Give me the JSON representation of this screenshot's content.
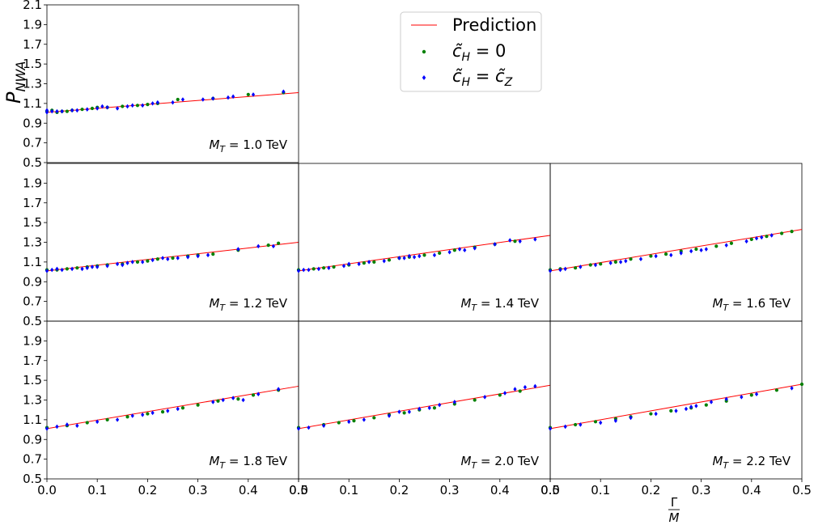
{
  "chart_data": {
    "type": "scatter",
    "ylabel": "P_NWA",
    "xlabel": "Γ/M",
    "legend": {
      "placement": "top-center",
      "entries": [
        {
          "label": "Prediction",
          "kind": "line",
          "color": "#ff0000"
        },
        {
          "label": "c̃_H = 0",
          "kind": "marker",
          "color": "#008000"
        },
        {
          "label": "c̃_H = c̃_Z",
          "kind": "marker",
          "color": "#0000ff"
        }
      ]
    },
    "xlim": [
      0.0,
      0.5
    ],
    "xticks": [
      0.0,
      0.1,
      0.2,
      0.3,
      0.4,
      0.5
    ],
    "xtick_labels": [
      "0.0",
      "0.1",
      "0.2",
      "0.3",
      "0.4",
      "0.5"
    ],
    "ylim_top_row": [
      0.5,
      2.1
    ],
    "ylim": [
      0.5,
      2.1
    ],
    "yticks_top_row": [
      "0.5",
      "0.7",
      "0.9",
      "1.1",
      "1.3",
      "1.5",
      "1.7",
      "1.9",
      "2.1"
    ],
    "yticks": [
      "0.5",
      "0.7",
      "0.9",
      "1.1",
      "1.3",
      "1.5",
      "1.7",
      "1.9"
    ],
    "panels": [
      {
        "label_mass": "1.0",
        "unit": "TeV",
        "row": 0,
        "col": 0,
        "prediction": [
          [
            0.0,
            1.01
          ],
          [
            0.5,
            1.21
          ]
        ],
        "green": [
          [
            0.0,
            1.02
          ],
          [
            0.01,
            1.03
          ],
          [
            0.02,
            1.01
          ],
          [
            0.03,
            1.02
          ],
          [
            0.04,
            1.02
          ],
          [
            0.05,
            1.03
          ],
          [
            0.07,
            1.04
          ],
          [
            0.09,
            1.05
          ],
          [
            0.1,
            1.06
          ],
          [
            0.12,
            1.06
          ],
          [
            0.15,
            1.07
          ],
          [
            0.18,
            1.08
          ],
          [
            0.2,
            1.09
          ],
          [
            0.22,
            1.1
          ],
          [
            0.26,
            1.14
          ],
          [
            0.33,
            1.15
          ],
          [
            0.4,
            1.19
          ],
          [
            0.47,
            1.21
          ]
        ],
        "blue": [
          [
            0.0,
            1.01
          ],
          [
            0.0,
            1.03
          ],
          [
            0.01,
            1.02
          ],
          [
            0.02,
            1.02
          ],
          [
            0.03,
            1.02
          ],
          [
            0.05,
            1.03
          ],
          [
            0.06,
            1.03
          ],
          [
            0.08,
            1.04
          ],
          [
            0.1,
            1.05
          ],
          [
            0.11,
            1.07
          ],
          [
            0.12,
            1.06
          ],
          [
            0.14,
            1.05
          ],
          [
            0.16,
            1.07
          ],
          [
            0.17,
            1.08
          ],
          [
            0.19,
            1.08
          ],
          [
            0.21,
            1.1
          ],
          [
            0.22,
            1.11
          ],
          [
            0.25,
            1.11
          ],
          [
            0.27,
            1.14
          ],
          [
            0.31,
            1.14
          ],
          [
            0.33,
            1.15
          ],
          [
            0.36,
            1.16
          ],
          [
            0.37,
            1.17
          ],
          [
            0.41,
            1.19
          ],
          [
            0.47,
            1.22
          ]
        ]
      },
      {
        "label_mass": "1.2",
        "unit": "TeV",
        "row": 1,
        "col": 0,
        "prediction": [
          [
            0.0,
            1.01
          ],
          [
            0.5,
            1.3
          ]
        ],
        "green": [
          [
            0.0,
            1.02
          ],
          [
            0.02,
            1.02
          ],
          [
            0.04,
            1.03
          ],
          [
            0.06,
            1.04
          ],
          [
            0.08,
            1.05
          ],
          [
            0.1,
            1.06
          ],
          [
            0.12,
            1.07
          ],
          [
            0.15,
            1.08
          ],
          [
            0.18,
            1.1
          ],
          [
            0.2,
            1.11
          ],
          [
            0.22,
            1.13
          ],
          [
            0.25,
            1.14
          ],
          [
            0.28,
            1.16
          ],
          [
            0.3,
            1.17
          ],
          [
            0.33,
            1.18
          ],
          [
            0.38,
            1.22
          ],
          [
            0.44,
            1.27
          ],
          [
            0.46,
            1.29
          ]
        ],
        "blue": [
          [
            0.0,
            1.01
          ],
          [
            0.01,
            1.02
          ],
          [
            0.02,
            1.03
          ],
          [
            0.03,
            1.02
          ],
          [
            0.05,
            1.03
          ],
          [
            0.07,
            1.03
          ],
          [
            0.08,
            1.04
          ],
          [
            0.09,
            1.05
          ],
          [
            0.1,
            1.05
          ],
          [
            0.12,
            1.06
          ],
          [
            0.14,
            1.08
          ],
          [
            0.15,
            1.07
          ],
          [
            0.16,
            1.09
          ],
          [
            0.17,
            1.1
          ],
          [
            0.19,
            1.1
          ],
          [
            0.21,
            1.12
          ],
          [
            0.23,
            1.14
          ],
          [
            0.24,
            1.13
          ],
          [
            0.26,
            1.14
          ],
          [
            0.28,
            1.15
          ],
          [
            0.3,
            1.16
          ],
          [
            0.32,
            1.17
          ],
          [
            0.38,
            1.23
          ],
          [
            0.42,
            1.26
          ],
          [
            0.45,
            1.26
          ]
        ]
      },
      {
        "label_mass": "1.4",
        "unit": "TeV",
        "row": 1,
        "col": 1,
        "prediction": [
          [
            0.0,
            1.01
          ],
          [
            0.5,
            1.37
          ]
        ],
        "green": [
          [
            0.0,
            1.02
          ],
          [
            0.03,
            1.03
          ],
          [
            0.05,
            1.04
          ],
          [
            0.07,
            1.05
          ],
          [
            0.1,
            1.07
          ],
          [
            0.13,
            1.09
          ],
          [
            0.15,
            1.1
          ],
          [
            0.18,
            1.12
          ],
          [
            0.2,
            1.14
          ],
          [
            0.22,
            1.15
          ],
          [
            0.25,
            1.17
          ],
          [
            0.28,
            1.19
          ],
          [
            0.31,
            1.22
          ],
          [
            0.35,
            1.25
          ],
          [
            0.39,
            1.28
          ],
          [
            0.43,
            1.31
          ]
        ],
        "blue": [
          [
            0.0,
            1.01
          ],
          [
            0.01,
            1.02
          ],
          [
            0.02,
            1.02
          ],
          [
            0.04,
            1.03
          ],
          [
            0.06,
            1.04
          ],
          [
            0.09,
            1.06
          ],
          [
            0.1,
            1.08
          ],
          [
            0.12,
            1.08
          ],
          [
            0.14,
            1.1
          ],
          [
            0.17,
            1.11
          ],
          [
            0.2,
            1.14
          ],
          [
            0.21,
            1.14
          ],
          [
            0.22,
            1.16
          ],
          [
            0.23,
            1.15
          ],
          [
            0.24,
            1.16
          ],
          [
            0.27,
            1.17
          ],
          [
            0.3,
            1.2
          ],
          [
            0.32,
            1.23
          ],
          [
            0.33,
            1.22
          ],
          [
            0.35,
            1.24
          ],
          [
            0.39,
            1.28
          ],
          [
            0.42,
            1.32
          ],
          [
            0.44,
            1.31
          ],
          [
            0.47,
            1.33
          ]
        ]
      },
      {
        "label_mass": "1.6",
        "unit": "TeV",
        "row": 1,
        "col": 2,
        "prediction": [
          [
            0.0,
            1.01
          ],
          [
            0.5,
            1.43
          ]
        ],
        "green": [
          [
            0.0,
            1.02
          ],
          [
            0.02,
            1.03
          ],
          [
            0.05,
            1.04
          ],
          [
            0.08,
            1.07
          ],
          [
            0.1,
            1.08
          ],
          [
            0.13,
            1.1
          ],
          [
            0.16,
            1.13
          ],
          [
            0.2,
            1.16
          ],
          [
            0.23,
            1.18
          ],
          [
            0.26,
            1.21
          ],
          [
            0.29,
            1.23
          ],
          [
            0.33,
            1.26
          ],
          [
            0.36,
            1.29
          ],
          [
            0.4,
            1.33
          ],
          [
            0.43,
            1.36
          ],
          [
            0.46,
            1.39
          ],
          [
            0.48,
            1.41
          ]
        ],
        "blue": [
          [
            0.0,
            1.01
          ],
          [
            0.02,
            1.02
          ],
          [
            0.03,
            1.03
          ],
          [
            0.06,
            1.05
          ],
          [
            0.09,
            1.07
          ],
          [
            0.12,
            1.09
          ],
          [
            0.14,
            1.1
          ],
          [
            0.15,
            1.11
          ],
          [
            0.18,
            1.13
          ],
          [
            0.21,
            1.16
          ],
          [
            0.24,
            1.17
          ],
          [
            0.26,
            1.19
          ],
          [
            0.28,
            1.21
          ],
          [
            0.3,
            1.22
          ],
          [
            0.31,
            1.23
          ],
          [
            0.35,
            1.27
          ],
          [
            0.39,
            1.31
          ],
          [
            0.41,
            1.34
          ],
          [
            0.42,
            1.35
          ],
          [
            0.44,
            1.37
          ]
        ]
      },
      {
        "label_mass": "1.8",
        "unit": "TeV",
        "row": 2,
        "col": 0,
        "prediction": [
          [
            0.0,
            1.01
          ],
          [
            0.5,
            1.44
          ]
        ],
        "green": [
          [
            0.0,
            1.02
          ],
          [
            0.04,
            1.04
          ],
          [
            0.08,
            1.07
          ],
          [
            0.12,
            1.1
          ],
          [
            0.16,
            1.13
          ],
          [
            0.2,
            1.16
          ],
          [
            0.23,
            1.18
          ],
          [
            0.27,
            1.22
          ],
          [
            0.3,
            1.25
          ],
          [
            0.34,
            1.29
          ],
          [
            0.38,
            1.31
          ],
          [
            0.41,
            1.35
          ],
          [
            0.46,
            1.4
          ]
        ],
        "blue": [
          [
            0.0,
            1.01
          ],
          [
            0.02,
            1.03
          ],
          [
            0.04,
            1.05
          ],
          [
            0.06,
            1.04
          ],
          [
            0.1,
            1.08
          ],
          [
            0.14,
            1.1
          ],
          [
            0.17,
            1.14
          ],
          [
            0.19,
            1.15
          ],
          [
            0.21,
            1.17
          ],
          [
            0.24,
            1.19
          ],
          [
            0.26,
            1.21
          ],
          [
            0.33,
            1.28
          ],
          [
            0.35,
            1.3
          ],
          [
            0.37,
            1.32
          ],
          [
            0.39,
            1.3
          ],
          [
            0.42,
            1.36
          ],
          [
            0.46,
            1.41
          ]
        ]
      },
      {
        "label_mass": "2.0",
        "unit": "TeV",
        "row": 2,
        "col": 1,
        "prediction": [
          [
            0.0,
            1.01
          ],
          [
            0.5,
            1.45
          ]
        ],
        "green": [
          [
            0.0,
            1.02
          ],
          [
            0.05,
            1.05
          ],
          [
            0.08,
            1.07
          ],
          [
            0.11,
            1.09
          ],
          [
            0.15,
            1.12
          ],
          [
            0.18,
            1.15
          ],
          [
            0.21,
            1.17
          ],
          [
            0.24,
            1.2
          ],
          [
            0.27,
            1.22
          ],
          [
            0.31,
            1.26
          ],
          [
            0.35,
            1.3
          ],
          [
            0.4,
            1.35
          ],
          [
            0.44,
            1.39
          ]
        ],
        "blue": [
          [
            0.0,
            1.01
          ],
          [
            0.02,
            1.02
          ],
          [
            0.05,
            1.04
          ],
          [
            0.1,
            1.08
          ],
          [
            0.13,
            1.1
          ],
          [
            0.18,
            1.14
          ],
          [
            0.2,
            1.18
          ],
          [
            0.22,
            1.18
          ],
          [
            0.24,
            1.21
          ],
          [
            0.26,
            1.22
          ],
          [
            0.28,
            1.25
          ],
          [
            0.31,
            1.28
          ],
          [
            0.37,
            1.33
          ],
          [
            0.41,
            1.37
          ],
          [
            0.43,
            1.41
          ],
          [
            0.45,
            1.43
          ],
          [
            0.47,
            1.44
          ]
        ]
      },
      {
        "label_mass": "2.2",
        "unit": "TeV",
        "row": 2,
        "col": 2,
        "prediction": [
          [
            0.0,
            1.01
          ],
          [
            0.5,
            1.46
          ]
        ],
        "green": [
          [
            0.0,
            1.02
          ],
          [
            0.05,
            1.05
          ],
          [
            0.09,
            1.08
          ],
          [
            0.13,
            1.11
          ],
          [
            0.16,
            1.13
          ],
          [
            0.2,
            1.16
          ],
          [
            0.24,
            1.19
          ],
          [
            0.28,
            1.22
          ],
          [
            0.31,
            1.25
          ],
          [
            0.35,
            1.29
          ],
          [
            0.4,
            1.35
          ],
          [
            0.45,
            1.4
          ],
          [
            0.5,
            1.46
          ]
        ],
        "blue": [
          [
            0.0,
            1.01
          ],
          [
            0.03,
            1.03
          ],
          [
            0.06,
            1.05
          ],
          [
            0.1,
            1.07
          ],
          [
            0.13,
            1.09
          ],
          [
            0.16,
            1.12
          ],
          [
            0.21,
            1.16
          ],
          [
            0.25,
            1.19
          ],
          [
            0.27,
            1.21
          ],
          [
            0.28,
            1.23
          ],
          [
            0.29,
            1.24
          ],
          [
            0.32,
            1.28
          ],
          [
            0.35,
            1.31
          ],
          [
            0.38,
            1.33
          ],
          [
            0.41,
            1.36
          ],
          [
            0.48,
            1.42
          ]
        ]
      }
    ]
  }
}
